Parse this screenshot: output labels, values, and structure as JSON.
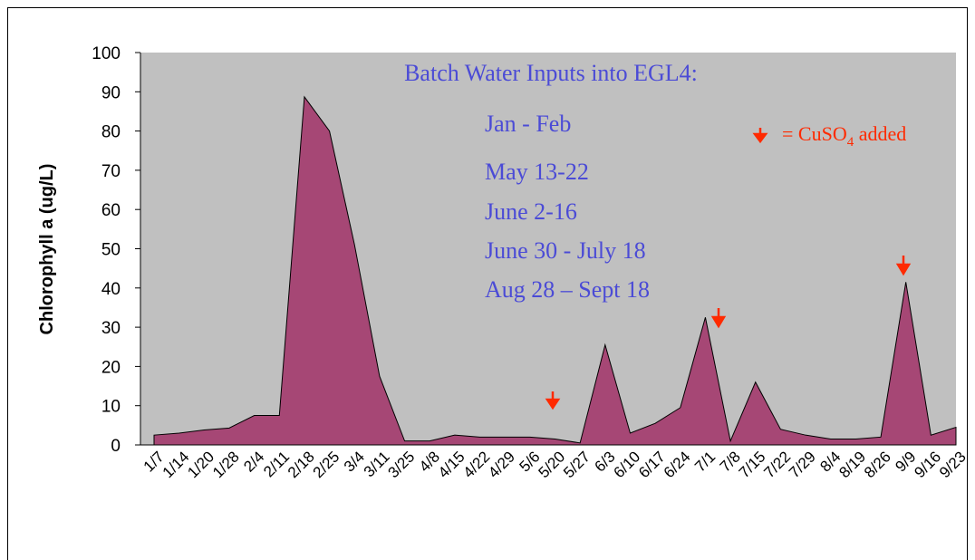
{
  "chart_data": {
    "type": "area",
    "y_label": "Chlorophyll a (ug/L)",
    "categories": [
      "1/7",
      "1/14",
      "1/20",
      "1/28",
      "2/4",
      "2/11",
      "2/18",
      "2/25",
      "3/4",
      "3/11",
      "3/25",
      "4/8",
      "4/15",
      "4/22",
      "4/29",
      "5/6",
      "5/20",
      "5/27",
      "6/3",
      "6/10",
      "6/17",
      "6/24",
      "7/1",
      "7/8",
      "7/15",
      "7/22",
      "7/29",
      "8/4",
      "8/19",
      "8/26",
      "9/9",
      "9/16",
      "9/23"
    ],
    "values": [
      2.5,
      3,
      3.8,
      4.3,
      7.5,
      7.5,
      88.7,
      80,
      51,
      17.5,
      1,
      1,
      2.5,
      2,
      2,
      2,
      1.5,
      0.5,
      25.5,
      3,
      5.5,
      9.5,
      32.5,
      1,
      16,
      4,
      2.5,
      1.5,
      1.5,
      2,
      41.5,
      2.5,
      4.5
    ],
    "color": "#a64775",
    "plot_background": "#c0c0c0",
    "ylim": [
      0,
      100
    ],
    "yticks": [
      0,
      10,
      20,
      30,
      40,
      50,
      60,
      70,
      80,
      90,
      100
    ],
    "annotation_title": "Batch Water Inputs into EGL4:",
    "annotation_lines": [
      "Jan - Feb",
      "May 13-22",
      "June 2-16",
      "June 30 - July 18",
      "Aug 28 – Sept 18"
    ],
    "legend_note": {
      "prefix": "= CuSO",
      "subscript": "4",
      "suffix": " added"
    }
  }
}
